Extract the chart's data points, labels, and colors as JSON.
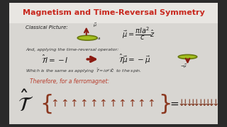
{
  "title": "Magnetism and Time-Reversal Symmetry",
  "title_color": "#c8281e",
  "bg_outer": "#2a2a2a",
  "bg_header": "#e8e6e2",
  "bg_content": "#d8d6d2",
  "text_dark": "#1a1a1a",
  "text_italic": "#333333",
  "red_arrow": "#8b1a10",
  "red_label": "#b84030",
  "up_arrow_color": "#8b3820",
  "down_arrow_color": "#7a3018",
  "brace_color": "#8b3820",
  "classical_label": "Classical Picture:",
  "applying_text": "And, applying the time-reversal operator:",
  "which_text": "Which is the same as applying",
  "which_eq": "$\\hat{\\mathcal{T}} = i\\sigma^y\\hat{\\mathcal{K}}$",
  "which_end": "to the spin.",
  "ferromagnet_label": "Therefore, for a ferromagnet:",
  "n_up": 11,
  "n_down": 10
}
